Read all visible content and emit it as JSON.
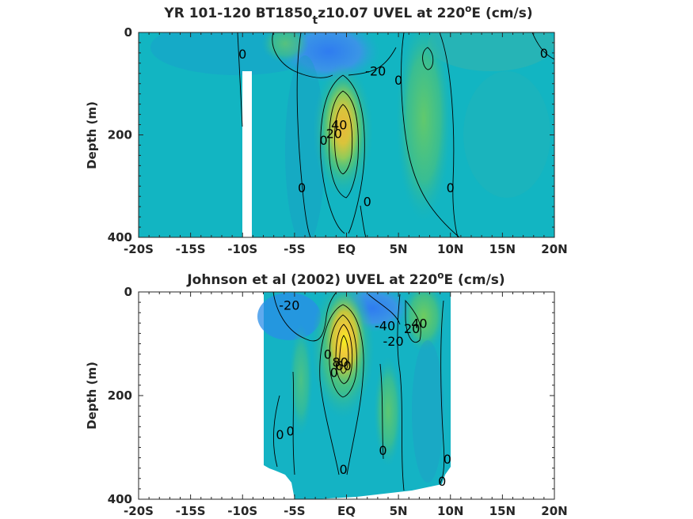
{
  "chart_data": [
    {
      "type": "contour",
      "title_parts": [
        "YR 101-120 BT1850",
        "t",
        "z10.07 UVEL at 220",
        "o",
        "E (cm/s)"
      ],
      "ylabel": "Depth (m)",
      "xticks": [
        "-20S",
        "-15S",
        "-10S",
        "-5S",
        "EQ",
        "5N",
        "10N",
        "15N",
        "20N"
      ],
      "xtick_values": [
        -20,
        -15,
        -10,
        -5,
        0,
        5,
        10,
        15,
        20
      ],
      "yticks": [
        "0",
        "200",
        "400"
      ],
      "ytick_values": [
        0,
        200,
        400
      ],
      "xlim": [
        -20,
        20
      ],
      "ylim": [
        400,
        0
      ],
      "contour_labels": [
        {
          "text": "0",
          "lat": -10,
          "depth": 42
        },
        {
          "text": "-20",
          "lat": 2.8,
          "depth": 75
        },
        {
          "text": "0",
          "lat": 5,
          "depth": 93
        },
        {
          "text": "0",
          "lat": 19,
          "depth": 40
        },
        {
          "text": "40",
          "lat": -0.7,
          "depth": 180
        },
        {
          "text": "20",
          "lat": -1.2,
          "depth": 197
        },
        {
          "text": "0",
          "lat": -2.2,
          "depth": 210
        },
        {
          "text": "0",
          "lat": -4.3,
          "depth": 303
        },
        {
          "text": "0",
          "lat": 10,
          "depth": 303
        },
        {
          "text": "0",
          "lat": 2,
          "depth": 330
        }
      ]
    },
    {
      "type": "contour",
      "title_parts": [
        "Johnson et al (2002) UVEL at 220",
        "o",
        "E (cm/s)"
      ],
      "ylabel": "Depth (m)",
      "xticks": [
        "-20S",
        "-15S",
        "-10S",
        "-5S",
        "EQ",
        "5N",
        "10N",
        "15N",
        "20N"
      ],
      "xtick_values": [
        -20,
        -15,
        -10,
        -5,
        0,
        5,
        10,
        15,
        20
      ],
      "yticks": [
        "0",
        "200",
        "400"
      ],
      "ytick_values": [
        0,
        200,
        400
      ],
      "xlim": [
        -20,
        20
      ],
      "ylim": [
        400,
        0
      ],
      "contour_labels": [
        {
          "text": "-20",
          "lat": -5.5,
          "depth": 25
        },
        {
          "text": "-40",
          "lat": 3.7,
          "depth": 65
        },
        {
          "text": "-20",
          "lat": 4.5,
          "depth": 95
        },
        {
          "text": "20",
          "lat": 6.3,
          "depth": 70
        },
        {
          "text": "40",
          "lat": 7,
          "depth": 60
        },
        {
          "text": "0",
          "lat": -1.8,
          "depth": 120
        },
        {
          "text": "80",
          "lat": -0.6,
          "depth": 135
        },
        {
          "text": "60",
          "lat": -0.3,
          "depth": 142
        },
        {
          "text": "0",
          "lat": -1.2,
          "depth": 155
        },
        {
          "text": "0",
          "lat": -6.4,
          "depth": 275
        },
        {
          "text": "0",
          "lat": -5.4,
          "depth": 268
        },
        {
          "text": "0",
          "lat": 3.5,
          "depth": 305
        },
        {
          "text": "0",
          "lat": 9.7,
          "depth": 322
        },
        {
          "text": "0",
          "lat": -0.3,
          "depth": 342
        },
        {
          "text": "0",
          "lat": 9.2,
          "depth": 365
        }
      ]
    }
  ]
}
